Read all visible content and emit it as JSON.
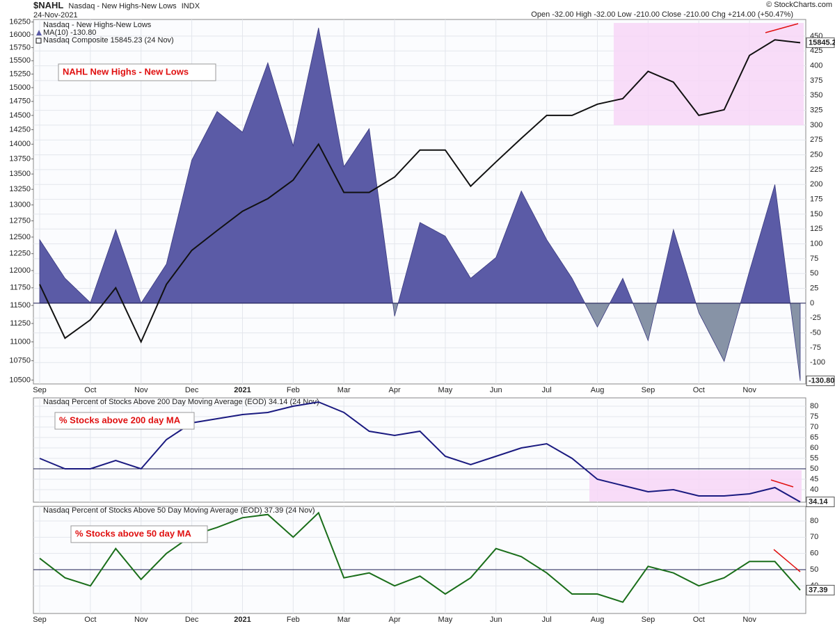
{
  "header": {
    "symbol": "$NAHL",
    "name": "Nasdaq - New Highs-New Lows",
    "exchange": "INDX",
    "date": "24-Nov-2021",
    "quote": "Open -32.00  High -32.00  Low -210.00  Close -210.00  Chg +214.00 (+50.47%)",
    "credit": "© StockCharts.com"
  },
  "chart_data": [
    {
      "type": "area",
      "subtitle": "Nasdaq - New Highs-New Lows",
      "annotation": "NAHL New Highs - New Lows",
      "categories": [
        "Sep",
        null,
        "Oct",
        null,
        "Nov",
        null,
        "Dec",
        null,
        "2021",
        null,
        "Feb",
        null,
        "Mar",
        null,
        "Apr",
        null,
        "May",
        null,
        "Jun",
        null,
        "Jul",
        null,
        "Aug",
        null,
        "Sep",
        null,
        "Oct",
        null,
        "Nov",
        null,
        null
      ],
      "log": true,
      "grid": true,
      "ylim": [
        10450,
        16300
      ],
      "yticks": [
        10500,
        10750,
        11000,
        11250,
        11500,
        11750,
        12000,
        12250,
        12500,
        12750,
        13000,
        13250,
        13500,
        13750,
        14000,
        14250,
        14500,
        14750,
        15000,
        15250,
        15500,
        15750,
        16000,
        16250
      ],
      "y2lim": [
        -136,
        478
      ],
      "y2ticks": [
        -100,
        -75,
        -50,
        -25,
        0,
        25,
        50,
        75,
        100,
        125,
        150,
        175,
        200,
        225,
        250,
        275,
        300,
        325,
        350,
        375,
        400,
        425,
        450
      ],
      "series": [
        {
          "name": "MA(10) -130.80",
          "type": "area",
          "axis": "y2",
          "color": "#5b5ba6",
          "negative_color": "#8793a6",
          "values": [
            107,
            42,
            1,
            124,
            0,
            66,
            241,
            323,
            288,
            405,
            265,
            464,
            230,
            294,
            -22,
            136,
            113,
            42,
            77,
            189,
            107,
            42,
            -40,
            42,
            -63,
            124,
            -16,
            -98,
            54,
            200,
            -130.8
          ],
          "value_labels": [
            null,
            null,
            null,
            null,
            null,
            null,
            null,
            null,
            null,
            null,
            null,
            null,
            null,
            null,
            null,
            null,
            null,
            null,
            null,
            null,
            null,
            null,
            null,
            null,
            null,
            null,
            null,
            null,
            null,
            null,
            "-130.80"
          ]
        },
        {
          "name": "Nasdaq Composite 15845.23 (24 Nov)",
          "type": "line",
          "color": "#111111",
          "values": [
            11800,
            11050,
            11300,
            11750,
            11000,
            11800,
            12300,
            12600,
            12900,
            13100,
            13400,
            14000,
            13200,
            13200,
            13450,
            13900,
            13900,
            13300,
            13700,
            14100,
            14500,
            14500,
            14700,
            14800,
            15300,
            15100,
            14500,
            14600,
            15600,
            15900,
            15845.23
          ],
          "value_labels": [
            null,
            null,
            null,
            null,
            null,
            null,
            null,
            null,
            null,
            null,
            null,
            null,
            null,
            null,
            null,
            null,
            null,
            null,
            null,
            null,
            null,
            null,
            null,
            null,
            null,
            null,
            null,
            null,
            null,
            null,
            "15845.2"
          ]
        }
      ]
    },
    {
      "type": "line",
      "title": "Nasdaq Percent of Stocks Above 200 Day Moving Average (EOD) 34.14 (24 Nov)",
      "annotation": "% Stocks above 200 day MA",
      "color": "#1a1a80",
      "grid": true,
      "hline": 50,
      "ylim": [
        34,
        84
      ],
      "yticks": [
        40,
        45,
        50,
        55,
        60,
        65,
        70,
        75,
        80
      ],
      "values": [
        55,
        50,
        50,
        54,
        50,
        64,
        72,
        74,
        76,
        77,
        80,
        82,
        77,
        68,
        66,
        68,
        56,
        52,
        56,
        60,
        62,
        55,
        45,
        42,
        39,
        40,
        37,
        37,
        38,
        41,
        34.14
      ]
    },
    {
      "type": "line",
      "title": "Nasdaq Percent of Stocks Above 50 Day Moving Average (EOD) 37.39 (24 Nov)",
      "annotation": "% Stocks above 50 day MA",
      "color": "#1a6e1a",
      "grid": true,
      "hline": 50,
      "categories": [
        "Sep",
        null,
        "Oct",
        null,
        "Nov",
        null,
        "Dec",
        null,
        "2021",
        null,
        "Feb",
        null,
        "Mar",
        null,
        "Apr",
        null,
        "May",
        null,
        "Jun",
        null,
        "Jul",
        null,
        "Aug",
        null,
        "Sep",
        null,
        "Oct",
        null,
        "Nov",
        null,
        null
      ],
      "ylim": [
        23,
        89
      ],
      "yticks": [
        40,
        50,
        60,
        70,
        80
      ],
      "values": [
        57,
        45,
        40,
        63,
        44,
        60,
        71,
        76,
        82,
        84,
        70,
        85,
        45,
        48,
        40,
        46,
        35,
        45,
        63,
        58,
        48,
        35,
        35,
        30,
        52,
        48,
        40,
        45,
        55,
        55,
        37.39
      ]
    }
  ]
}
